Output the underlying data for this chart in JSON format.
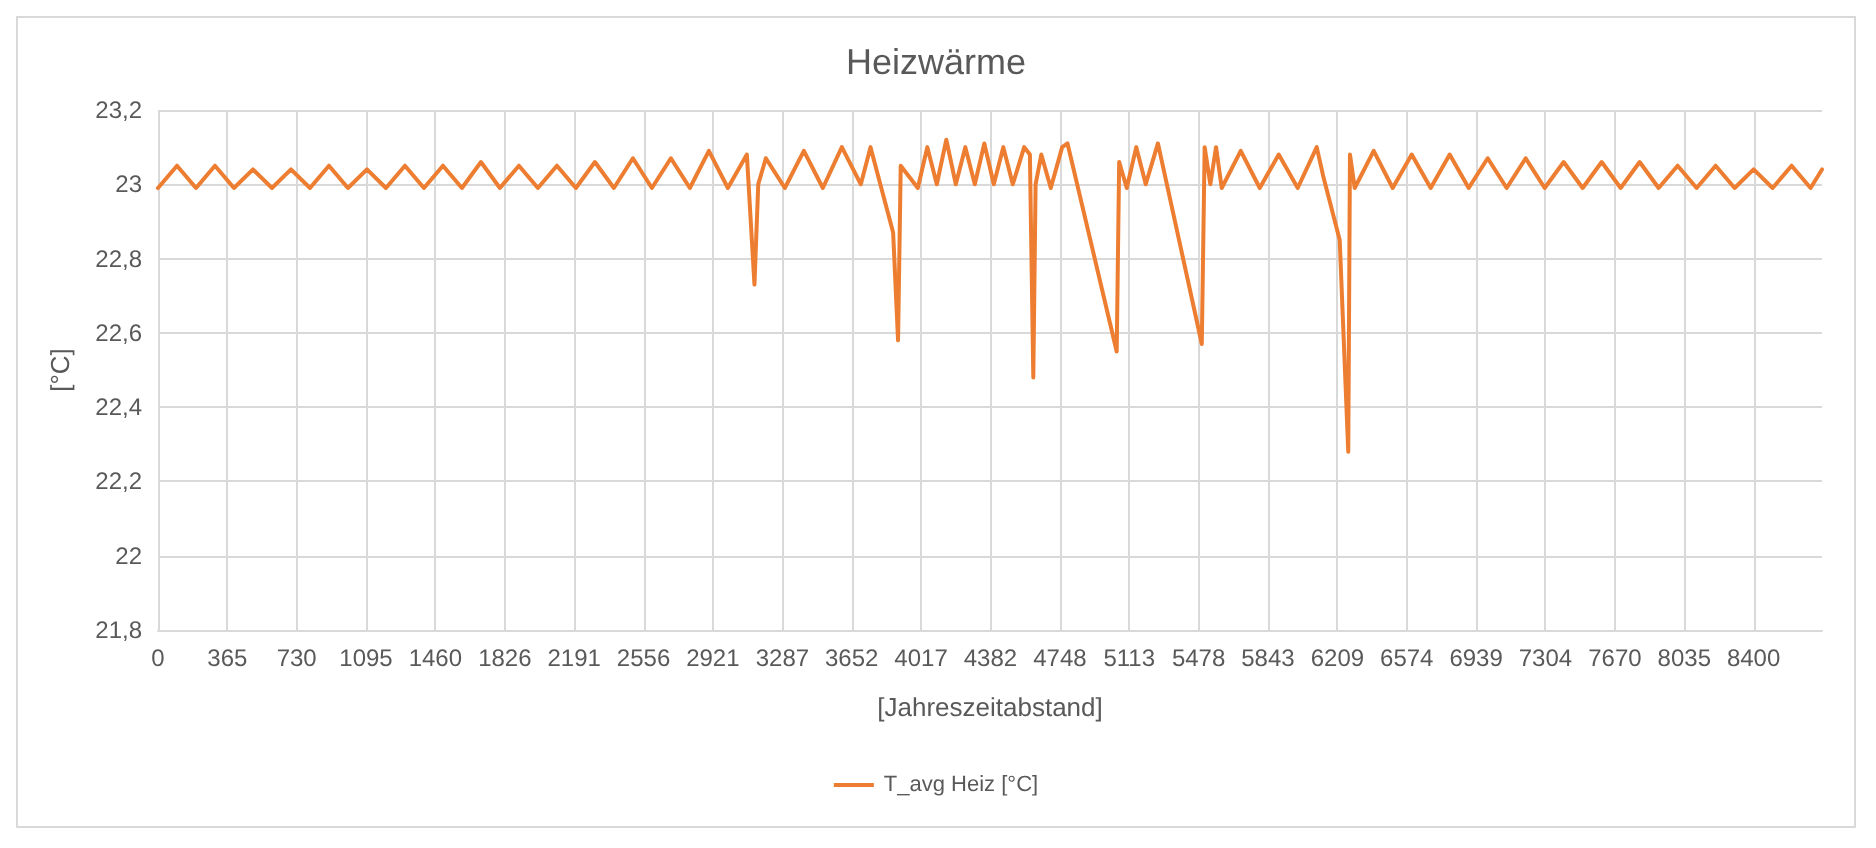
{
  "chart_data": {
    "type": "line",
    "title": "Heizwärme",
    "xlabel": "[Jahreszeitabstand]",
    "ylabel": "[°C]",
    "xlim": [
      0,
      8760
    ],
    "xticks": [
      0,
      365,
      730,
      1095,
      1460,
      1826,
      2191,
      2556,
      2921,
      3287,
      3652,
      4017,
      4382,
      4748,
      5113,
      5478,
      5843,
      6209,
      6574,
      6939,
      7304,
      7670,
      8035,
      8400
    ],
    "ylim": [
      21.8,
      23.2
    ],
    "yticks": [
      {
        "value": 21.8,
        "label": "21,8"
      },
      22,
      {
        "value": 22.2,
        "label": "22,2"
      },
      {
        "value": 22.4,
        "label": "22,4"
      },
      {
        "value": 22.6,
        "label": "22,6"
      },
      {
        "value": 22.8,
        "label": "22,8"
      },
      23,
      {
        "value": 23.2,
        "label": "23,2"
      }
    ],
    "grid": true,
    "legend": "bottom",
    "marker": "none",
    "line_style": "solid",
    "series": [
      {
        "name": "T_avg Heiz [°C]",
        "color": "#ed7d31",
        "x": [
          0,
          100,
          200,
          300,
          400,
          500,
          600,
          700,
          800,
          900,
          1000,
          1100,
          1200,
          1300,
          1400,
          1500,
          1600,
          1700,
          1800,
          1900,
          2000,
          2100,
          2200,
          2300,
          2400,
          2500,
          2600,
          2700,
          2800,
          2900,
          3000,
          3100,
          3140,
          3160,
          3200,
          3300,
          3400,
          3500,
          3600,
          3700,
          3751,
          3870,
          3896,
          3910,
          4000,
          4050,
          4100,
          4150,
          4200,
          4250,
          4300,
          4350,
          4400,
          4450,
          4500,
          4560,
          4590,
          4608,
          4620,
          4650,
          4700,
          4760,
          4788,
          5047,
          5060,
          5100,
          5150,
          5200,
          5264,
          5495,
          5510,
          5540,
          5570,
          5600,
          5700,
          5800,
          5900,
          6000,
          6100,
          6135,
          6221,
          6266,
          6275,
          6300,
          6400,
          6500,
          6600,
          6700,
          6800,
          6900,
          7000,
          7100,
          7200,
          7300,
          7400,
          7500,
          7600,
          7700,
          7800,
          7900,
          8000,
          8100,
          8200,
          8300,
          8400,
          8500,
          8600,
          8700,
          8760
        ],
        "values": [
          22.99,
          23.05,
          22.99,
          23.05,
          22.99,
          23.04,
          22.99,
          23.04,
          22.99,
          23.05,
          22.99,
          23.04,
          22.99,
          23.05,
          22.99,
          23.05,
          22.99,
          23.06,
          22.99,
          23.05,
          22.99,
          23.05,
          22.99,
          23.06,
          22.99,
          23.07,
          22.99,
          23.07,
          22.99,
          23.09,
          22.99,
          23.08,
          22.73,
          23.0,
          23.07,
          22.99,
          23.09,
          22.99,
          23.1,
          23.0,
          23.1,
          22.87,
          22.58,
          23.05,
          22.99,
          23.1,
          23.0,
          23.12,
          23.0,
          23.1,
          23.0,
          23.11,
          23.0,
          23.1,
          23.0,
          23.1,
          23.08,
          22.48,
          23.0,
          23.08,
          22.99,
          23.1,
          23.11,
          22.55,
          23.06,
          22.99,
          23.1,
          23.0,
          23.11,
          22.57,
          23.1,
          23.0,
          23.1,
          22.99,
          23.09,
          22.99,
          23.08,
          22.99,
          23.1,
          23.02,
          22.85,
          22.28,
          23.08,
          22.99,
          23.09,
          22.99,
          23.08,
          22.99,
          23.08,
          22.99,
          23.07,
          22.99,
          23.07,
          22.99,
          23.06,
          22.99,
          23.06,
          22.99,
          23.06,
          22.99,
          23.05,
          22.99,
          23.05,
          22.99,
          23.04,
          22.99,
          23.05,
          22.99,
          23.04
        ]
      }
    ]
  }
}
